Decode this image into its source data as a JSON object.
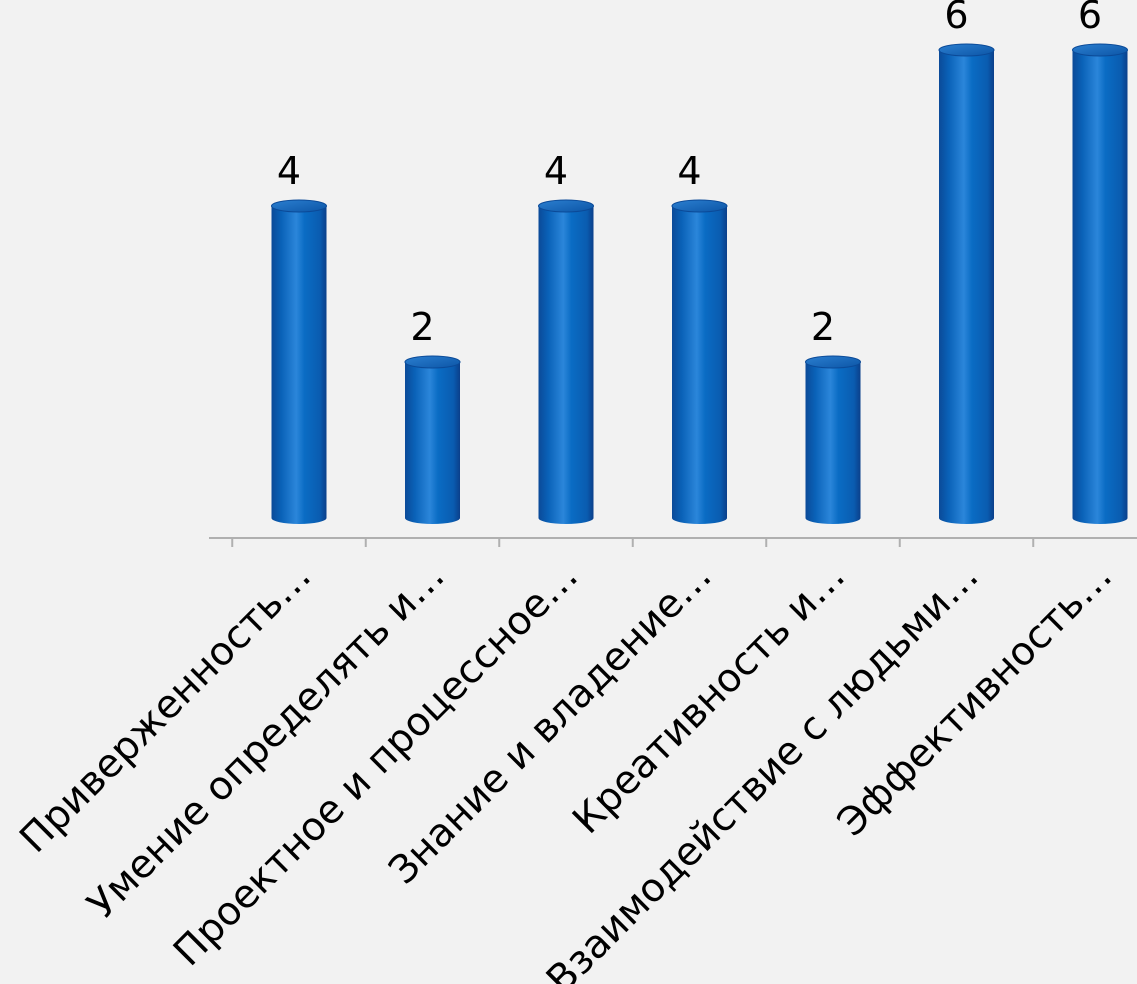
{
  "chart_data": {
    "type": "bar",
    "style": "3d-cylinder",
    "categories": [
      "Приверженность…",
      "Умение определять и…",
      "Проектное и процессное…",
      "Знание и владение…",
      "Креативность и…",
      "Взаимодействие с людьми…",
      "Эффективность…"
    ],
    "values": [
      4,
      2,
      4,
      4,
      2,
      6,
      6
    ],
    "value_labels": [
      "4",
      "2",
      "4",
      "4",
      "2",
      "6",
      "6"
    ],
    "ylim": [
      0,
      6
    ],
    "grid": false,
    "legend": "none",
    "title": "",
    "xlabel": "",
    "ylabel": ""
  },
  "colors": {
    "background": "#f2f2f2",
    "bar_body": "#0a6cc4",
    "bar_dark": "#0b3f8a",
    "bar_highlight": "#4ea0ea",
    "bar_top": "#1f6fc0",
    "axis": "#b0b0b0",
    "text": "#000000"
  }
}
